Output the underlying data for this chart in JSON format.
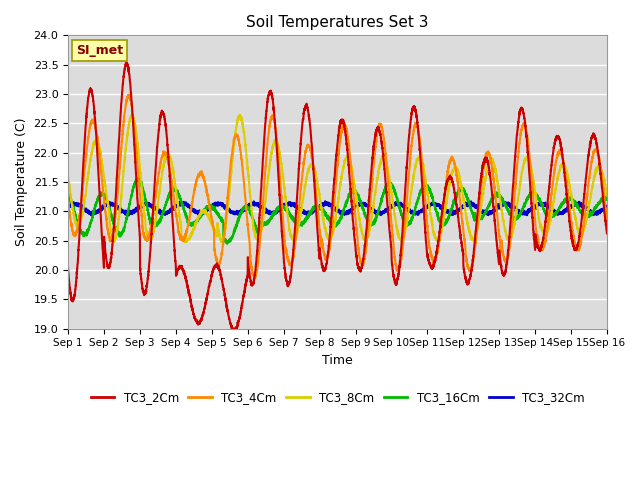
{
  "title": "Soil Temperatures Set 3",
  "xlabel": "Time",
  "ylabel": "Soil Temperature (C)",
  "ylim": [
    19.0,
    24.0
  ],
  "yticks": [
    19.0,
    19.5,
    20.0,
    20.5,
    21.0,
    21.5,
    22.0,
    22.5,
    23.0,
    23.5,
    24.0
  ],
  "xtick_labels": [
    "Sep 1",
    "Sep 2",
    "Sep 3",
    "Sep 4",
    "Sep 5",
    "Sep 6",
    "Sep 7",
    "Sep 8",
    "Sep 9",
    "Sep 10",
    "Sep 11",
    "Sep 12",
    "Sep 13",
    "Sep 14",
    "Sep 15",
    "Sep 16"
  ],
  "bg_color": "#dcdcdc",
  "grid_color": "#ffffff",
  "annotation_text": "SI_met",
  "annotation_bg": "#ffffaa",
  "annotation_border": "#999900",
  "series_TC3_2Cm_color": "#cc0000",
  "series_TC3_4Cm_color": "#ff8800",
  "series_TC3_8Cm_color": "#ddcc00",
  "series_TC3_16Cm_color": "#00bb00",
  "series_TC3_32Cm_color": "#0000cc",
  "TC3_2Cm_peaks": [
    23.08,
    23.52,
    22.7,
    19.1,
    18.97,
    23.05,
    22.8,
    22.55,
    22.42,
    22.78,
    21.58,
    21.9,
    22.75,
    22.28,
    22.3
  ],
  "TC3_2Cm_troughs": [
    19.48,
    20.05,
    19.6,
    20.05,
    20.08,
    19.75,
    19.75,
    20.0,
    20.0,
    19.78,
    20.05,
    19.78,
    19.92,
    20.35,
    20.35
  ],
  "TC3_4Cm_peaks": [
    22.55,
    22.97,
    22.0,
    21.65,
    22.3,
    22.62,
    22.12,
    22.48,
    22.48,
    22.48,
    21.9,
    22.0,
    22.48,
    22.02,
    22.05
  ],
  "TC3_4Cm_troughs": [
    20.6,
    20.52,
    20.52,
    20.52,
    20.1,
    19.88,
    20.1,
    20.2,
    20.1,
    20.0,
    20.15,
    20.0,
    20.15,
    20.35,
    20.35
  ],
  "TC3_8Cm_peaks": [
    22.2,
    22.62,
    21.98,
    21.0,
    22.62,
    22.2,
    21.8,
    21.92,
    21.92,
    21.92,
    21.75,
    21.88,
    21.92,
    21.8,
    21.75
  ],
  "TC3_8Cm_troughs": [
    20.75,
    20.52,
    20.52,
    20.5,
    20.5,
    20.52,
    20.52,
    20.52,
    20.52,
    20.52,
    20.52,
    20.52,
    20.52,
    20.62,
    20.62
  ],
  "TC3_16Cm_peaks": [
    21.3,
    21.55,
    21.38,
    21.08,
    21.08,
    21.08,
    21.08,
    21.35,
    21.48,
    21.45,
    21.38,
    21.28,
    21.32,
    21.22,
    21.22
  ],
  "TC3_16Cm_troughs": [
    20.6,
    20.6,
    20.78,
    20.78,
    20.48,
    20.78,
    20.78,
    20.78,
    20.78,
    20.78,
    20.78,
    20.88,
    20.88,
    20.92,
    20.92
  ],
  "TC3_32Cm_mean": 21.05,
  "TC3_32Cm_amp": 0.08,
  "peak_hour": 0.625,
  "trough_hour": 0.125,
  "phase_shifts_days": {
    "TC3_2Cm": 0.0,
    "TC3_4Cm": 0.06,
    "TC3_8Cm": 0.15,
    "TC3_16Cm": 0.32,
    "TC3_32Cm": 0.55
  }
}
